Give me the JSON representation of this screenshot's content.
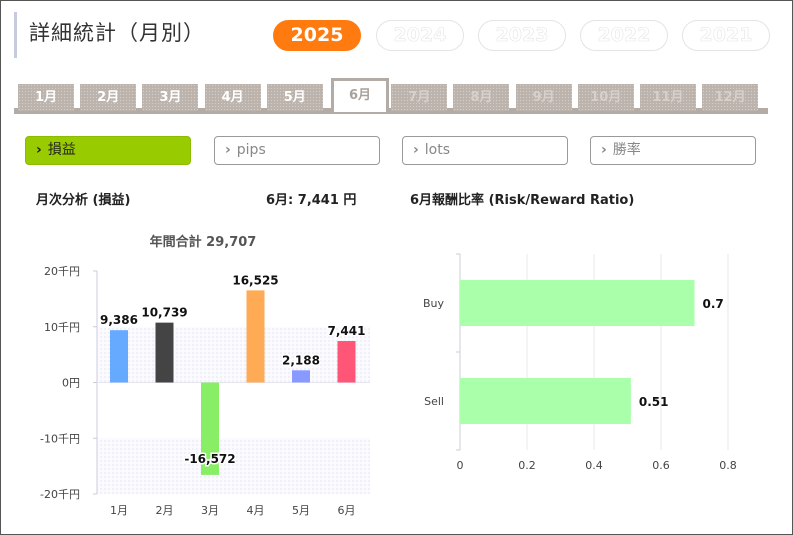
{
  "page_title": "詳細統計（月別）",
  "years": [
    {
      "label": "2025",
      "active": true
    },
    {
      "label": "2024",
      "active": false
    },
    {
      "label": "2023",
      "active": false
    },
    {
      "label": "2022",
      "active": false
    },
    {
      "label": "2021",
      "active": false
    }
  ],
  "month_tabs": [
    {
      "label": "1月",
      "state": "past"
    },
    {
      "label": "2月",
      "state": "past"
    },
    {
      "label": "3月",
      "state": "past"
    },
    {
      "label": "4月",
      "state": "past"
    },
    {
      "label": "5月",
      "state": "past"
    },
    {
      "label": "6月",
      "state": "active"
    },
    {
      "label": "7月",
      "state": "future"
    },
    {
      "label": "8月",
      "state": "future"
    },
    {
      "label": "9月",
      "state": "future"
    },
    {
      "label": "10月",
      "state": "future"
    },
    {
      "label": "11月",
      "state": "future"
    },
    {
      "label": "12月",
      "state": "future"
    }
  ],
  "metrics": [
    {
      "label": "損益",
      "active": true
    },
    {
      "label": "pips",
      "active": false
    },
    {
      "label": "lots",
      "active": false
    },
    {
      "label": "勝率",
      "active": false
    }
  ],
  "left_heading": "月次分析 (損益)",
  "month_summary": "6月:  7,441 円",
  "right_heading": "6月報酬比率 (Risk/Reward Ratio)",
  "colors": {
    "accent": "#ff7b0f",
    "active_metric": "#99cc00",
    "tab": "#bcb3ad"
  },
  "chart_data": [
    {
      "type": "bar",
      "title": "年間合計 29,707",
      "categories": [
        "1月",
        "2月",
        "3月",
        "4月",
        "5月",
        "6月"
      ],
      "values": [
        9386,
        10739,
        -16572,
        16525,
        2188,
        7441
      ],
      "value_labels": [
        "9,386",
        "10,739",
        "-16,572",
        "16,525",
        "2,188",
        "7,441"
      ],
      "colors": [
        "#66aaff",
        "#444444",
        "#88ee66",
        "#ffaa55",
        "#8899ff",
        "#ff5577"
      ],
      "ylim": [
        -20000,
        20000
      ],
      "yticks": [
        20000,
        10000,
        0,
        -10000,
        -20000
      ],
      "ytick_labels": [
        "20千円",
        "10千円",
        "0円",
        "-10千円",
        "-20千円"
      ],
      "legend": "none"
    },
    {
      "type": "bar",
      "orientation": "horizontal",
      "categories": [
        "Buy",
        "Sell"
      ],
      "values": [
        0.7,
        0.51
      ],
      "value_labels": [
        "0.7",
        "0.51"
      ],
      "color": "#aaffaa",
      "xlim": [
        0,
        0.8
      ],
      "xticks": [
        0,
        0.2,
        0.4,
        0.6,
        0.8
      ],
      "xtick_labels": [
        "0",
        "0.2",
        "0.4",
        "0.6",
        "0.8"
      ],
      "grid": true,
      "legend": "none"
    }
  ]
}
